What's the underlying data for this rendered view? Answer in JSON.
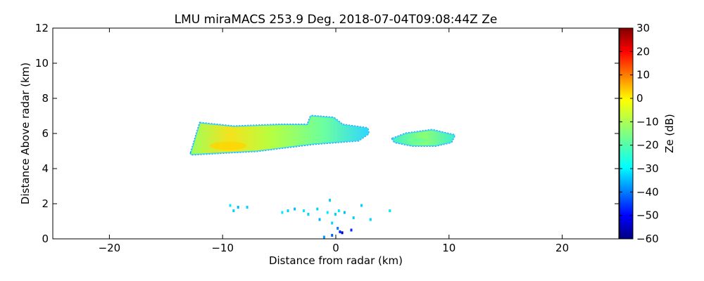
{
  "chart_data": {
    "type": "heatmap",
    "title": "LMU miraMACS 253.9 Deg. 2018-07-04T09:08:44Z  Ze",
    "xlabel": "Distance from radar (km)",
    "ylabel": "Distance Above radar  (km)",
    "xlim": [
      -25,
      25
    ],
    "ylim": [
      0,
      12
    ],
    "xticks": [
      -20,
      -10,
      0,
      10,
      20
    ],
    "yticks": [
      0,
      2,
      4,
      6,
      8,
      10,
      12
    ],
    "grid": false,
    "colorbar": {
      "label": "Ze (dB)",
      "range": [
        -60,
        30
      ],
      "ticks": [
        30,
        20,
        10,
        0,
        -10,
        -20,
        -30,
        -40,
        -50,
        -60
      ],
      "colormap": "jet"
    },
    "echoes": [
      {
        "name": "main-layer",
        "outline": [
          [
            -12.8,
            4.9
          ],
          [
            -12.0,
            6.6
          ],
          [
            -9.0,
            6.4
          ],
          [
            -5.0,
            6.5
          ],
          [
            -2.5,
            6.5
          ],
          [
            -2.2,
            7.0
          ],
          [
            -0.2,
            6.9
          ],
          [
            0.6,
            6.5
          ],
          [
            2.8,
            6.3
          ],
          [
            2.9,
            6.0
          ],
          [
            2.0,
            5.6
          ],
          [
            -2.0,
            5.4
          ],
          [
            -4.5,
            5.2
          ],
          [
            -7.0,
            5.0
          ],
          [
            -10.0,
            4.9
          ],
          [
            -12.8,
            4.8
          ]
        ],
        "core": {
          "x": -9.5,
          "y": 5.3,
          "ze": 0
        }
      },
      {
        "name": "right-cell",
        "outline": [
          [
            5.0,
            5.7
          ],
          [
            6.2,
            6.0
          ],
          [
            8.5,
            6.2
          ],
          [
            10.5,
            5.9
          ],
          [
            10.2,
            5.5
          ],
          [
            8.8,
            5.3
          ],
          [
            6.8,
            5.3
          ],
          [
            5.2,
            5.5
          ]
        ],
        "core": {
          "x": 7.2,
          "y": 5.6,
          "ze": -17
        }
      }
    ],
    "low_level_clutter": [
      {
        "x": -9.0,
        "y": 1.6,
        "ze": -30
      },
      {
        "x": -8.6,
        "y": 1.8,
        "ze": -32
      },
      {
        "x": -9.3,
        "y": 1.9,
        "ze": -28
      },
      {
        "x": -7.8,
        "y": 1.8,
        "ze": -30
      },
      {
        "x": -4.7,
        "y": 1.5,
        "ze": -28
      },
      {
        "x": -4.2,
        "y": 1.6,
        "ze": -30
      },
      {
        "x": -3.6,
        "y": 1.7,
        "ze": -32
      },
      {
        "x": -2.8,
        "y": 1.6,
        "ze": -28
      },
      {
        "x": -2.4,
        "y": 1.4,
        "ze": -30
      },
      {
        "x": -1.6,
        "y": 1.7,
        "ze": -30
      },
      {
        "x": -1.4,
        "y": 1.1,
        "ze": -33
      },
      {
        "x": -0.7,
        "y": 1.5,
        "ze": -28
      },
      {
        "x": -0.5,
        "y": 2.2,
        "ze": -30
      },
      {
        "x": -0.3,
        "y": 0.9,
        "ze": -30
      },
      {
        "x": 0.0,
        "y": 1.4,
        "ze": -30
      },
      {
        "x": 0.3,
        "y": 1.6,
        "ze": -28
      },
      {
        "x": 0.8,
        "y": 1.5,
        "ze": -32
      },
      {
        "x": 0.2,
        "y": 0.6,
        "ze": -38
      },
      {
        "x": 0.4,
        "y": 0.4,
        "ze": -45
      },
      {
        "x": 0.6,
        "y": 0.35,
        "ze": -55
      },
      {
        "x": -0.3,
        "y": 0.2,
        "ze": -40
      },
      {
        "x": -1.0,
        "y": 0.1,
        "ze": -35
      },
      {
        "x": 1.4,
        "y": 0.5,
        "ze": -45
      },
      {
        "x": 1.6,
        "y": 1.2,
        "ze": -30
      },
      {
        "x": 2.3,
        "y": 1.9,
        "ze": -30
      },
      {
        "x": 3.1,
        "y": 1.1,
        "ze": -30
      },
      {
        "x": 4.8,
        "y": 1.6,
        "ze": -28
      }
    ]
  }
}
